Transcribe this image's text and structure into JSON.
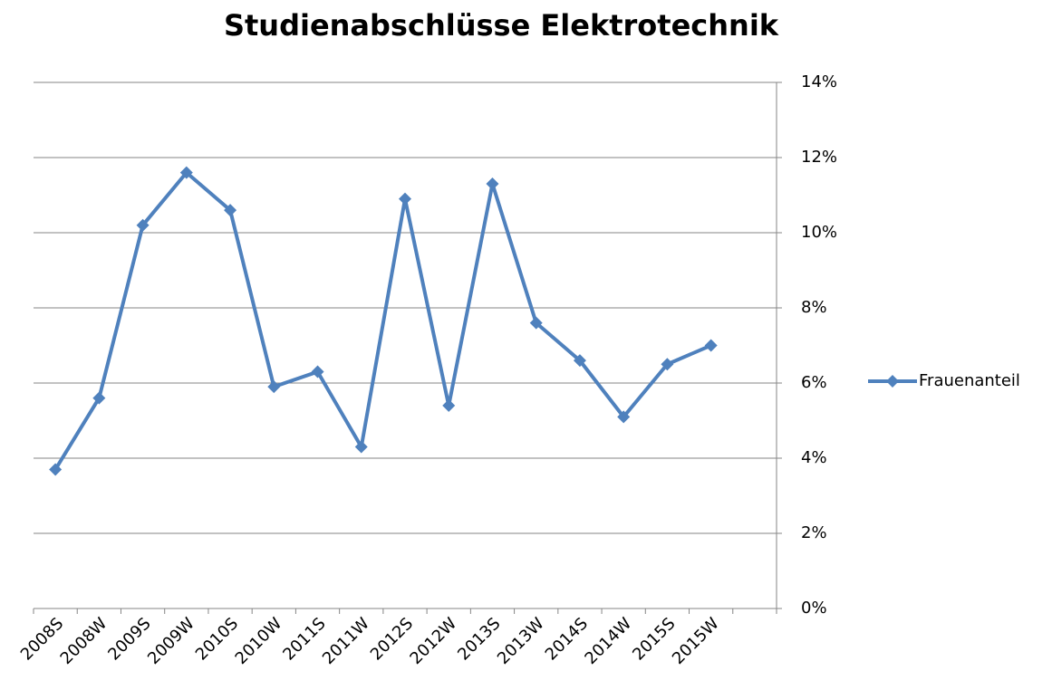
{
  "chart_data": {
    "type": "line",
    "title": "Studienabschlüsse Elektrotechnik",
    "categories": [
      "2008S",
      "2008W",
      "2009S",
      "2009W",
      "2010S",
      "2010W",
      "2011S",
      "2011W",
      "2012S",
      "2012W",
      "2013S",
      "2013W",
      "2014S",
      "2014W",
      "2015S",
      "2015W",
      null
    ],
    "series": [
      {
        "name": "Frauenanteil",
        "color": "#4f81bd",
        "values": [
          3.7,
          5.6,
          10.2,
          11.6,
          10.6,
          5.9,
          6.3,
          4.3,
          10.9,
          5.4,
          11.3,
          7.6,
          6.6,
          5.1,
          6.5,
          7.0,
          null
        ]
      }
    ],
    "ylim": [
      0,
      14
    ],
    "yticks": [
      {
        "value": 0,
        "label": "0%"
      },
      {
        "value": 2,
        "label": "2%"
      },
      {
        "value": 4,
        "label": "4%"
      },
      {
        "value": 6,
        "label": "6%"
      },
      {
        "value": 8,
        "label": "8%"
      },
      {
        "value": 10,
        "label": "10%"
      },
      {
        "value": 12,
        "label": "12%"
      },
      {
        "value": 14,
        "label": "14%"
      }
    ],
    "y_axis_side": "right",
    "grid": true,
    "legend": "right"
  }
}
